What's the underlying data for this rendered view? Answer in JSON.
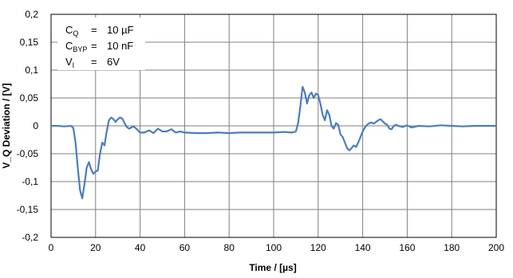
{
  "chart_data": {
    "type": "line",
    "title": "",
    "xlabel": "Time / [µs]",
    "ylabel": "V_Q Deviation / [V]",
    "xlim": [
      0,
      200
    ],
    "ylim": [
      -0.2,
      0.2
    ],
    "x_ticks": [
      "0",
      "20",
      "40",
      "60",
      "80",
      "100",
      "120",
      "140",
      "160",
      "180",
      "200"
    ],
    "y_ticks": [
      "0,2",
      "0,15",
      "0,1",
      "0,05",
      "0",
      "-0,05",
      "-0,1",
      "-0,15",
      "-0,2"
    ],
    "grid": true,
    "annotations": [
      {
        "label": "C",
        "sub": "Q",
        "eq": "=",
        "value": "10 µF"
      },
      {
        "label": "C",
        "sub": "BYP",
        "eq": "=",
        "value": "10 nF"
      },
      {
        "label": "V",
        "sub": "I",
        "eq": "=",
        "value": "6V"
      }
    ],
    "series": [
      {
        "color": "#4a7ebb",
        "x": [
          0,
          3,
          6,
          9,
          10,
          11,
          12,
          13,
          14,
          15,
          16,
          17,
          18,
          19,
          20,
          21,
          22,
          23,
          24,
          25,
          26,
          27,
          28,
          29,
          30,
          31,
          32,
          33,
          34,
          35,
          36,
          37,
          38,
          40,
          42,
          44,
          46,
          48,
          50,
          52,
          54,
          56,
          58,
          60,
          65,
          70,
          75,
          80,
          85,
          90,
          95,
          100,
          105,
          108,
          110,
          111,
          112,
          113,
          114,
          115,
          116,
          117,
          118,
          119,
          120,
          121,
          122,
          123,
          124,
          125,
          126,
          127,
          128,
          129,
          130,
          131,
          132,
          133,
          134,
          135,
          136,
          137,
          138,
          139,
          140,
          141,
          142,
          143,
          144,
          145,
          146,
          147,
          148,
          149,
          150,
          151,
          152,
          153,
          154,
          155,
          156,
          158,
          160,
          162,
          165,
          170,
          175,
          180,
          185,
          190,
          195,
          200
        ],
        "y": [
          0,
          0,
          -0.001,
          0,
          -0.004,
          -0.03,
          -0.075,
          -0.115,
          -0.13,
          -0.105,
          -0.075,
          -0.065,
          -0.078,
          -0.086,
          -0.082,
          -0.08,
          -0.05,
          -0.03,
          -0.035,
          -0.01,
          0.01,
          0.015,
          0.012,
          0.007,
          0.012,
          0.015,
          0.013,
          0.005,
          -0.002,
          -0.005,
          -0.003,
          -0.001,
          -0.004,
          -0.012,
          -0.012,
          -0.008,
          -0.013,
          -0.005,
          -0.01,
          -0.01,
          -0.006,
          -0.012,
          -0.01,
          -0.012,
          -0.013,
          -0.013,
          -0.012,
          -0.013,
          -0.012,
          -0.012,
          -0.012,
          -0.012,
          -0.011,
          -0.012,
          -0.01,
          0.005,
          0.035,
          0.07,
          0.06,
          0.04,
          0.055,
          0.06,
          0.05,
          0.058,
          0.055,
          0.04,
          0.02,
          0.01,
          0.028,
          0.02,
          0.0,
          -0.005,
          0.005,
          0.002,
          -0.015,
          -0.02,
          -0.03,
          -0.04,
          -0.044,
          -0.04,
          -0.035,
          -0.038,
          -0.03,
          -0.02,
          -0.01,
          -0.003,
          0.002,
          0.005,
          0.006,
          0.004,
          0.007,
          0.01,
          0.012,
          0.008,
          0.004,
          0.002,
          -0.005,
          -0.006,
          0.0,
          0.002,
          0.0,
          -0.002,
          0.001,
          -0.003,
          0.0,
          -0.001,
          0.001,
          0.0,
          -0.001,
          0.0,
          0.0,
          0.0
        ]
      }
    ]
  }
}
